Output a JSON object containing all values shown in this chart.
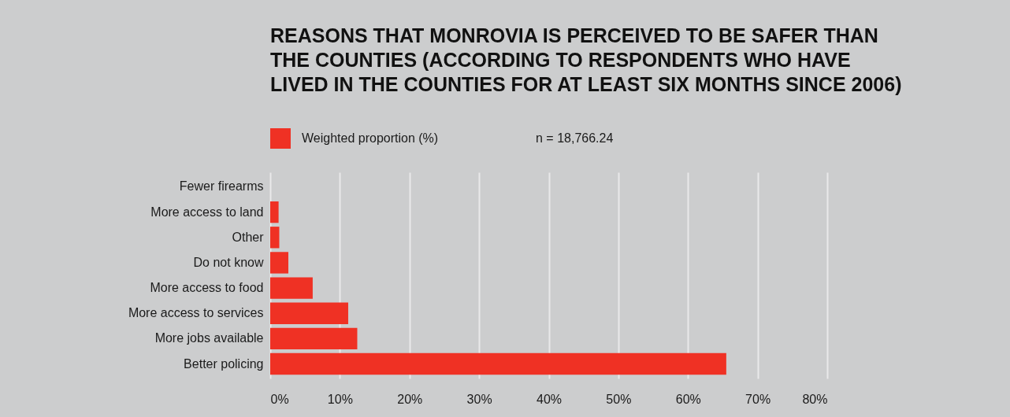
{
  "chart_data": {
    "type": "bar",
    "orientation": "horizontal",
    "title": "REASONS THAT MONROVIA IS PERCEIVED TO BE SAFER THAN THE COUNTIES (ACCORDING TO RESPONDENTS WHO HAVE LIVED IN THE COUNTIES FOR AT LEAST SIX MONTHS SINCE 2006)",
    "categories": [
      "Fewer firearms",
      "More access to land",
      "Other",
      "Do not know",
      "More access to food",
      "More access to services",
      "More jobs available",
      "Better policing"
    ],
    "series": [
      {
        "name": "Weighted proportion (%)",
        "color": "#ef3124",
        "values": [
          0,
          1.2,
          1.3,
          2.6,
          6.1,
          11.2,
          12.5,
          65.5
        ]
      }
    ],
    "xlim": [
      0,
      80
    ],
    "xticks": [
      {
        "value": 0,
        "label": "0%"
      },
      {
        "value": 10,
        "label": "10%"
      },
      {
        "value": 20,
        "label": "20%"
      },
      {
        "value": 30,
        "label": "30%"
      },
      {
        "value": 40,
        "label": "40%"
      },
      {
        "value": 50,
        "label": "50%"
      },
      {
        "value": 60,
        "label": "60%"
      },
      {
        "value": 70,
        "label": "70%"
      },
      {
        "value": 80,
        "label": "80%"
      }
    ],
    "grid": "x",
    "legend": "top left",
    "annotations": [
      "n = 18,766.24"
    ]
  }
}
